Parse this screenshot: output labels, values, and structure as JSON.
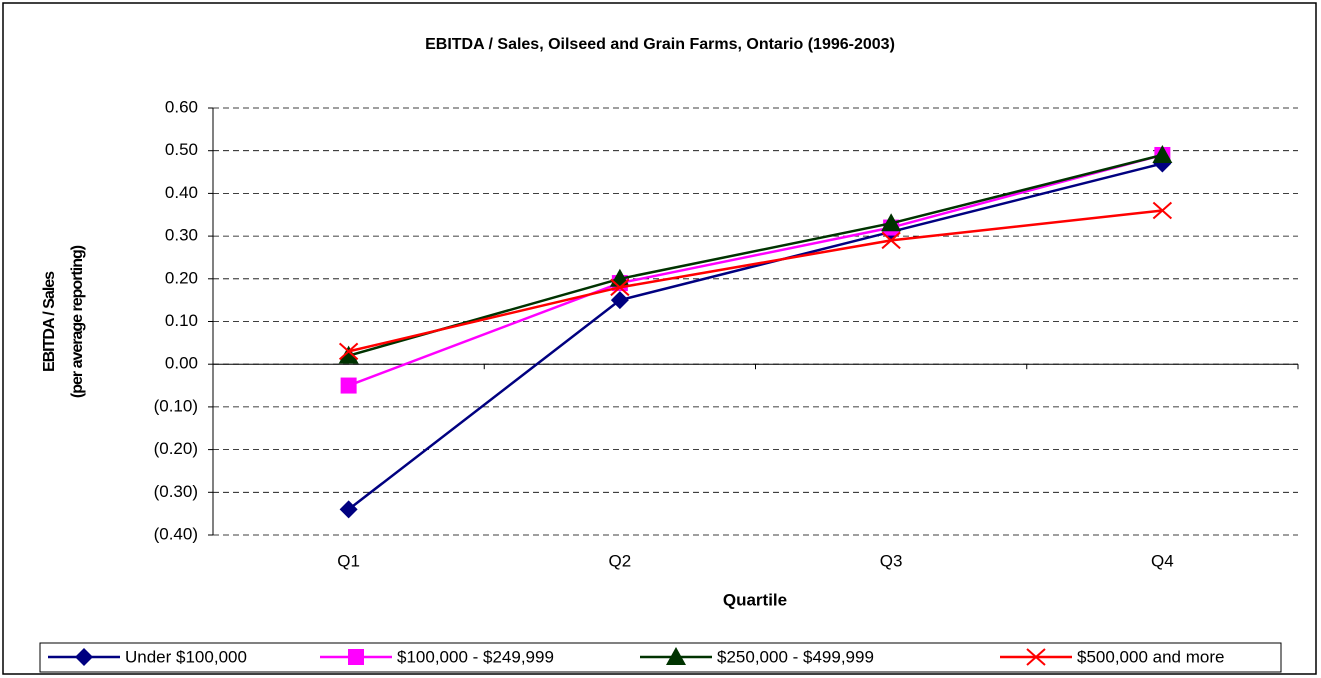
{
  "chart_data": {
    "type": "line",
    "title": "EBITDA / Sales, Oilseed and Grain Farms, Ontario (1996-2003)",
    "x_label": "Quartile",
    "y_label": [
      "EBITDA / Sales",
      "(per average reporting)"
    ],
    "categories": [
      "Q1",
      "Q2",
      "Q3",
      "Q4"
    ],
    "series": [
      {
        "name": "Under $100,000",
        "color": "#000080",
        "marker": "diamond",
        "values": [
          -0.34,
          0.15,
          0.31,
          0.47
        ]
      },
      {
        "name": "$100,000 - $249,999",
        "color": "#FF00FF",
        "marker": "square",
        "values": [
          -0.05,
          0.19,
          0.32,
          0.49
        ]
      },
      {
        "name": "$250,000 - $499,999",
        "color": "#003300",
        "marker": "triangle",
        "values": [
          0.02,
          0.2,
          0.33,
          0.49
        ]
      },
      {
        "name": "$500,000 and more",
        "color": "#FF0000",
        "marker": "cross",
        "values": [
          0.03,
          0.18,
          0.29,
          0.36
        ]
      }
    ],
    "ylim": [
      -0.4,
      0.6
    ],
    "yticks": [
      {
        "value": -0.4,
        "label": "(0.40)"
      },
      {
        "value": -0.3,
        "label": "(0.30)"
      },
      {
        "value": -0.2,
        "label": "(0.20)"
      },
      {
        "value": -0.1,
        "label": "(0.10)"
      },
      {
        "value": 0,
        "label": "0.00"
      },
      {
        "value": 0.1,
        "label": "0.10"
      },
      {
        "value": 0.2,
        "label": "0.20"
      },
      {
        "value": 0.3,
        "label": "0.30"
      },
      {
        "value": 0.4,
        "label": "0.40"
      },
      {
        "value": 0.5,
        "label": "0.50"
      },
      {
        "value": 0.6,
        "label": "0.60"
      }
    ],
    "grid": true,
    "legend": "bottom"
  }
}
